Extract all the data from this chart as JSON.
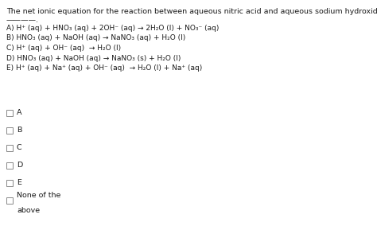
{
  "background_color": "#ffffff",
  "title_line1": "The net ionic equation for the reaction between aqueous nitric acid and aqueous sodium hydroxide is",
  "title_line2": "————.",
  "options": [
    "A) H⁺ (aq) + HNO₃ (aq) + 2OH⁻ (aq) → 2H₂O (l) + NO₃⁻ (aq)",
    "B) HNO₃ (aq) + NaOH (aq) → NaNO₃ (aq) + H₂O (l)",
    "C) H⁺ (aq) + OH⁻ (aq)  → H₂O (l)",
    "D) HNO₃ (aq) + NaOH (aq) → NaNO₃ (s) + H₂O (l)",
    "E) H⁺ (aq) + Na⁺ (aq) + OH⁻ (aq)  → H₂O (l) + Na⁺ (aq)"
  ],
  "choices": [
    "A",
    "B",
    "C",
    "D",
    "E"
  ],
  "font_size_title": 6.8,
  "font_size_options": 6.5,
  "font_size_choices": 6.8,
  "text_color": "#1a1a1a",
  "checkbox_color": "#888888"
}
